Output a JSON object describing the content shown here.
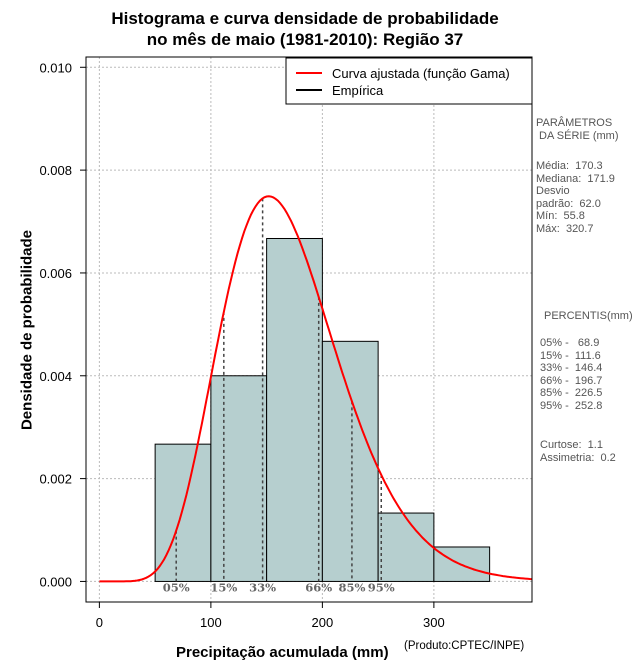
{
  "chart_data": {
    "type": "histogram",
    "title": [
      "Histograma e curva densidade de probabilidade",
      "no mês de maio (1981-2010): Região 37"
    ],
    "xlabel": "Precipitação acumulada (mm)",
    "ylabel": "Densidade de probabilidade",
    "credit": "(Produto:CPTEC/INPE)",
    "xlim": [
      -12,
      388
    ],
    "ylim": [
      -0.0004,
      0.0102
    ],
    "x_ticks": [
      0,
      100,
      200,
      300
    ],
    "x_tick_labels": [
      "0",
      "100",
      "200",
      "300"
    ],
    "y_ticks": [
      0,
      0.002,
      0.004,
      0.006,
      0.008,
      0.01
    ],
    "y_tick_labels": [
      "0.000",
      "0.002",
      "0.004",
      "0.006",
      "0.008",
      "0.010"
    ],
    "grid": true,
    "bins": [
      {
        "start": 50,
        "end": 100,
        "density": 0.00267
      },
      {
        "start": 100,
        "end": 150,
        "density": 0.004
      },
      {
        "start": 150,
        "end": 200,
        "density": 0.00667
      },
      {
        "start": 200,
        "end": 250,
        "density": 0.00467
      },
      {
        "start": 250,
        "end": 300,
        "density": 0.00133
      },
      {
        "start": 300,
        "end": 350,
        "density": 0.00067
      }
    ],
    "bar_color": "#b6cfcf",
    "gamma_fit": {
      "shape": 9.3,
      "scale": 18.3
    },
    "curve_color": "#ff0000",
    "legend": [
      {
        "label": "Curva ajustada (função Gama)",
        "color": "#ff0000"
      },
      {
        "label": "Empírica",
        "color": "#000000"
      }
    ],
    "legend_position": "top-right",
    "percentile_markers": [
      {
        "label": "05%",
        "value": 68.9
      },
      {
        "label": "15%",
        "value": 111.6
      },
      {
        "label": "33%",
        "value": 146.4
      },
      {
        "label": "66%",
        "value": 196.7
      },
      {
        "label": "85%",
        "value": 226.5
      },
      {
        "label": "95%",
        "value": 252.8
      }
    ]
  },
  "parametros": {
    "title": "PARÂMETROS\n DA SÉRIE (mm)",
    "body": "Média:  170.3\nMediana:  171.9\nDesvio\npadrão:  62.0\nMín:  55.8\nMáx:  320.7"
  },
  "percentis": {
    "title": "PERCENTIS(mm)",
    "body": "05% -   68.9\n15% -  111.6\n33% -  146.4\n66% -  196.7\n85% -  226.5\n95% -  252.8",
    "stats": "Curtose:  1.1\nAssimetria:  0.2"
  }
}
